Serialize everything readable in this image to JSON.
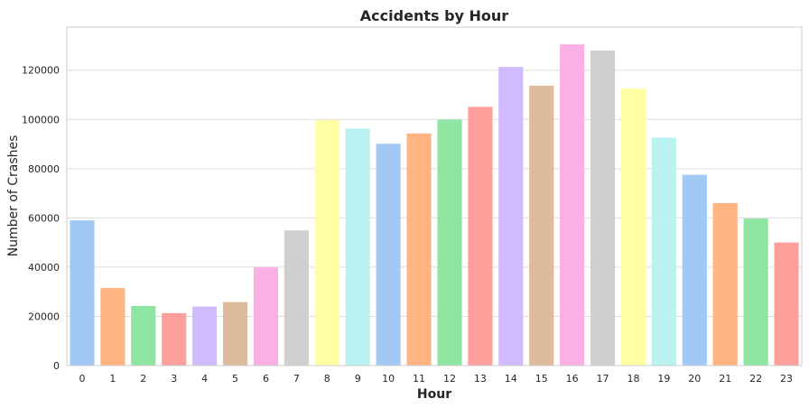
{
  "chart_data": {
    "type": "bar",
    "title": "Accidents by Hour",
    "xlabel": "Hour",
    "ylabel": "Number of Crashes",
    "categories": [
      "0",
      "1",
      "2",
      "3",
      "4",
      "5",
      "6",
      "7",
      "8",
      "9",
      "10",
      "11",
      "12",
      "13",
      "14",
      "15",
      "16",
      "17",
      "18",
      "19",
      "20",
      "21",
      "22",
      "23"
    ],
    "values": [
      59000,
      31500,
      24200,
      21300,
      24000,
      25800,
      39900,
      54900,
      99700,
      96300,
      90100,
      94300,
      99900,
      105100,
      121300,
      113700,
      130500,
      128000,
      112500,
      92600,
      77500,
      66000,
      59700,
      50000
    ],
    "ylim": [
      0,
      137500
    ],
    "yticks": [
      0,
      20000,
      40000,
      60000,
      80000,
      100000,
      120000
    ],
    "grid": true,
    "colors": [
      "#a1c9f4",
      "#ffb482",
      "#8de5a1",
      "#ff9f9b",
      "#d0bbff",
      "#debb9b",
      "#fab0e4",
      "#cfcfcf",
      "#fffea3",
      "#b9f2f0"
    ]
  }
}
